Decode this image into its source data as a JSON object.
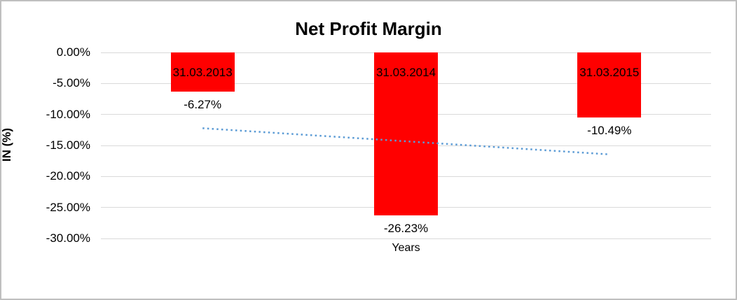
{
  "chart_data": {
    "type": "bar",
    "title": "Net Profit Margin",
    "xlabel": "Years",
    "ylabel": "IN (%)",
    "categories": [
      "31.03.2013",
      "31.03.2014",
      "31.03.2015"
    ],
    "values": [
      -6.27,
      -26.23,
      -10.49
    ],
    "data_labels": [
      "-6.27%",
      "-26.23%",
      "-10.49%"
    ],
    "ylim": [
      -30,
      0
    ],
    "y_ticks": [
      {
        "value": 0,
        "label": "0.00%"
      },
      {
        "value": -5,
        "label": "-5.00%"
      },
      {
        "value": -10,
        "label": "-10.00%"
      },
      {
        "value": -15,
        "label": "-15.00%"
      },
      {
        "value": -20,
        "label": "-20.00%"
      },
      {
        "value": -25,
        "label": "-25.00%"
      },
      {
        "value": -30,
        "label": "-30.00%"
      }
    ],
    "grid": true,
    "legend": "none",
    "bar_color": "#ff0000",
    "text_color": "#000000",
    "gridline_color": "#d9d9d9",
    "trendline": {
      "type": "linear",
      "style": "dotted",
      "color": "#5b9bd5",
      "start_value": -12.22,
      "end_value": -16.44
    }
  }
}
